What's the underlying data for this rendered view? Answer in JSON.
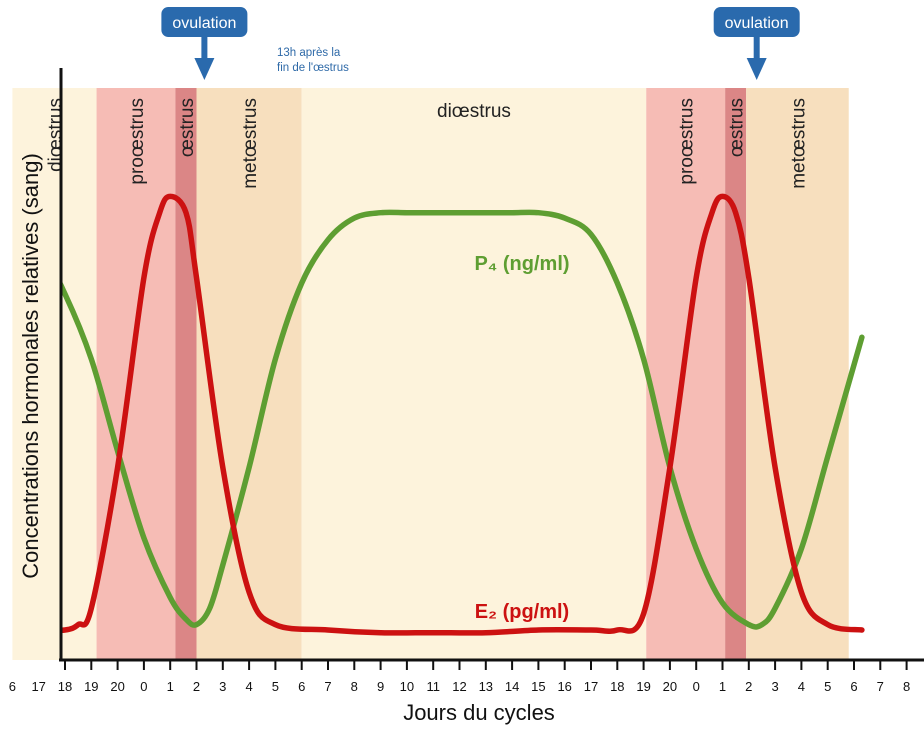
{
  "chart_data": {
    "type": "line",
    "xlabel": "Jours du cycles",
    "ylabel": "Concentrations hormonales relatives (sang)",
    "x_ticks": [
      "6",
      "17",
      "18",
      "19",
      "20",
      "0",
      "1",
      "2",
      "3",
      "4",
      "5",
      "6",
      "7",
      "8",
      "9",
      "10",
      "11",
      "12",
      "13",
      "14",
      "15",
      "16",
      "17",
      "18",
      "19",
      "20",
      "0",
      "1",
      "2",
      "3",
      "4",
      "5",
      "6",
      "7",
      "8"
    ],
    "xlim": [
      0,
      32.3
    ],
    "ylim": [
      0,
      1
    ],
    "grid": false,
    "phases": [
      {
        "label": "diœstrus",
        "start": 0,
        "end": 3.2,
        "color": "#fdf3dc",
        "orientation": "vertical"
      },
      {
        "label": "proœstrus",
        "start": 3.2,
        "end": 6.2,
        "color": "#f6bcb5",
        "orientation": "vertical"
      },
      {
        "label": "œstrus",
        "start": 6.2,
        "end": 7.0,
        "color": "#db8686",
        "orientation": "vertical"
      },
      {
        "label": "metœstrus",
        "start": 7.0,
        "end": 11.0,
        "color": "#f7dfbe",
        "orientation": "vertical"
      },
      {
        "label": "diœstrus",
        "start": 11.0,
        "end": 24.1,
        "color": "#fdf3dc",
        "orientation": "horizontal"
      },
      {
        "label": "proœstrus",
        "start": 24.1,
        "end": 27.1,
        "color": "#f6bcb5",
        "orientation": "vertical"
      },
      {
        "label": "œstrus",
        "start": 27.1,
        "end": 27.9,
        "color": "#db8686",
        "orientation": "vertical"
      },
      {
        "label": "metœstrus",
        "start": 27.9,
        "end": 31.8,
        "color": "#f7dfbe",
        "orientation": "vertical"
      }
    ],
    "series": [
      {
        "name": "P₄ (ng/ml)",
        "color": "#5e9e32",
        "points": [
          [
            0,
            0.75
          ],
          [
            1,
            0.71
          ],
          [
            2,
            0.62
          ],
          [
            3,
            0.5
          ],
          [
            4,
            0.33
          ],
          [
            5,
            0.17
          ],
          [
            6,
            0.06
          ],
          [
            6.6,
            0.02
          ],
          [
            7,
            0.01
          ],
          [
            7.5,
            0.04
          ],
          [
            8,
            0.12
          ],
          [
            9,
            0.3
          ],
          [
            10,
            0.5
          ],
          [
            11,
            0.64
          ],
          [
            12,
            0.72
          ],
          [
            13,
            0.76
          ],
          [
            14,
            0.77
          ],
          [
            15,
            0.77
          ],
          [
            16,
            0.77
          ],
          [
            17,
            0.77
          ],
          [
            18,
            0.77
          ],
          [
            19,
            0.77
          ],
          [
            20,
            0.77
          ],
          [
            21,
            0.76
          ],
          [
            22,
            0.73
          ],
          [
            23,
            0.64
          ],
          [
            24,
            0.5
          ],
          [
            25,
            0.3
          ],
          [
            26,
            0.15
          ],
          [
            27,
            0.05
          ],
          [
            28,
            0.01
          ],
          [
            28.5,
            0.01
          ],
          [
            29,
            0.04
          ],
          [
            30,
            0.15
          ],
          [
            31,
            0.32
          ],
          [
            32.3,
            0.54
          ]
        ]
      },
      {
        "name": "E₂ (pg/ml)",
        "color": "#cc1111",
        "points": [
          [
            0,
            0.0
          ],
          [
            1,
            0.0
          ],
          [
            2,
            0.0
          ],
          [
            2.5,
            0.01
          ],
          [
            3,
            0.04
          ],
          [
            4,
            0.3
          ],
          [
            5,
            0.65
          ],
          [
            5.6,
            0.77
          ],
          [
            6.0,
            0.8
          ],
          [
            6.6,
            0.77
          ],
          [
            7,
            0.65
          ],
          [
            8,
            0.3
          ],
          [
            9,
            0.07
          ],
          [
            10,
            0.01
          ],
          [
            12,
            0.0
          ],
          [
            14,
            -0.005
          ],
          [
            16,
            -0.005
          ],
          [
            18,
            -0.005
          ],
          [
            20,
            0.0
          ],
          [
            22,
            0.0
          ],
          [
            23,
            0.0
          ],
          [
            24,
            0.03
          ],
          [
            25,
            0.3
          ],
          [
            26,
            0.65
          ],
          [
            26.6,
            0.77
          ],
          [
            27,
            0.8
          ],
          [
            27.5,
            0.77
          ],
          [
            28,
            0.65
          ],
          [
            29,
            0.3
          ],
          [
            30,
            0.07
          ],
          [
            31,
            0.01
          ],
          [
            32.3,
            0.0
          ]
        ]
      }
    ],
    "annotations": [
      {
        "label": "ovulation",
        "x": 7.3
      },
      {
        "label": "ovulation",
        "x": 28.3
      },
      {
        "text": "13h après la fin de l'œstrus"
      }
    ]
  },
  "colors": {
    "badge": "#2a6aad",
    "arrow": "#2a6aad",
    "axis": "#111111"
  }
}
